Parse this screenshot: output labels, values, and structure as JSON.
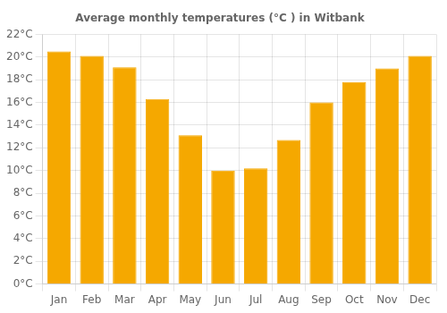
{
  "chart_data": {
    "type": "bar",
    "title": "Average monthly temperatures (°C ) in Witbank",
    "categories": [
      "Jan",
      "Feb",
      "Mar",
      "Apr",
      "May",
      "Jun",
      "Jul",
      "Aug",
      "Sep",
      "Oct",
      "Nov",
      "Dec"
    ],
    "values": [
      20.5,
      20.1,
      19.1,
      16.3,
      13.1,
      10.0,
      10.2,
      12.7,
      16.0,
      17.8,
      19.0,
      20.1
    ],
    "color": "#F5A800",
    "ylim": [
      0,
      22
    ],
    "yticks": [
      {
        "value": 0,
        "label": "0°C"
      },
      {
        "value": 2,
        "label": "2°C"
      },
      {
        "value": 4,
        "label": "4°C"
      },
      {
        "value": 6,
        "label": "6°C"
      },
      {
        "value": 8,
        "label": "8°C"
      },
      {
        "value": 10,
        "label": "10°C"
      },
      {
        "value": 12,
        "label": "12°C"
      },
      {
        "value": 14,
        "label": "14°C"
      },
      {
        "value": 16,
        "label": "16°C"
      },
      {
        "value": 18,
        "label": "18°C"
      },
      {
        "value": 20,
        "label": "20°C"
      },
      {
        "value": 22,
        "label": "22°C"
      }
    ],
    "grid": true
  }
}
